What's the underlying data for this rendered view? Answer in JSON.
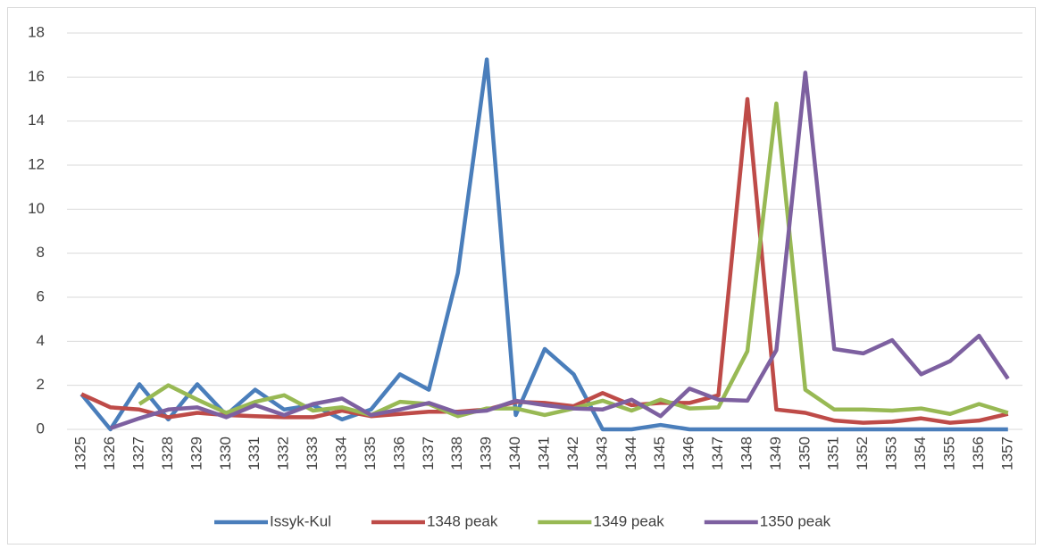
{
  "chart_data": {
    "type": "line",
    "categories": [
      "1325",
      "1326",
      "1327",
      "1328",
      "1329",
      "1330",
      "1331",
      "1332",
      "1333",
      "1334",
      "1335",
      "1336",
      "1337",
      "1338",
      "1339",
      "1340",
      "1341",
      "1342",
      "1343",
      "1344",
      "1345",
      "1346",
      "1347",
      "1348",
      "1349",
      "1350",
      "1351",
      "1352",
      "1353",
      "1354",
      "1355",
      "1356",
      "1357"
    ],
    "series": [
      {
        "name": "Issyk-Kul",
        "color": "#4a7ebb",
        "values": [
          1.6,
          0,
          2.05,
          0.45,
          2.05,
          0.65,
          1.8,
          0.9,
          1.1,
          0.45,
          0.9,
          2.5,
          1.8,
          7.1,
          16.8,
          0.65,
          3.65,
          2.5,
          0,
          0,
          0.2,
          0,
          0,
          0,
          0,
          0,
          0,
          0,
          0,
          0,
          0,
          0,
          0
        ]
      },
      {
        "name": "1348 peak",
        "color": "#be4b48",
        "values": [
          1.6,
          1.0,
          0.9,
          0.55,
          0.75,
          0.65,
          0.6,
          0.55,
          0.55,
          0.85,
          0.6,
          0.7,
          0.8,
          0.8,
          0.9,
          1.25,
          1.2,
          1.05,
          1.65,
          1.1,
          1.2,
          1.2,
          1.55,
          15.0,
          0.9,
          0.75,
          0.4,
          0.3,
          0.35,
          0.5,
          0.3,
          0.4,
          0.7
        ]
      },
      {
        "name": "1349 peak",
        "color": "#98b954",
        "values": [
          null,
          null,
          1.15,
          2.0,
          1.35,
          0.75,
          1.25,
          1.55,
          0.85,
          1.0,
          0.65,
          1.25,
          1.15,
          0.6,
          0.95,
          0.95,
          0.65,
          0.95,
          1.3,
          0.85,
          1.35,
          0.95,
          1.0,
          3.55,
          14.8,
          1.8,
          0.9,
          0.9,
          0.85,
          0.95,
          0.7,
          1.15,
          0.75
        ]
      },
      {
        "name": "1350 peak",
        "color": "#7d60a0",
        "values": [
          null,
          0.05,
          0.5,
          0.9,
          1.0,
          0.55,
          1.1,
          0.65,
          1.15,
          1.4,
          0.65,
          0.9,
          1.2,
          0.75,
          0.85,
          1.3,
          1.1,
          0.95,
          0.9,
          1.35,
          0.6,
          1.85,
          1.35,
          1.3,
          3.6,
          16.2,
          3.65,
          3.45,
          4.05,
          2.5,
          3.1,
          4.25,
          2.3
        ]
      }
    ],
    "ylim": [
      0,
      18
    ],
    "yticks": [
      0,
      2,
      4,
      6,
      8,
      10,
      12,
      14,
      16,
      18
    ],
    "grid": true,
    "legend": "bottom"
  }
}
